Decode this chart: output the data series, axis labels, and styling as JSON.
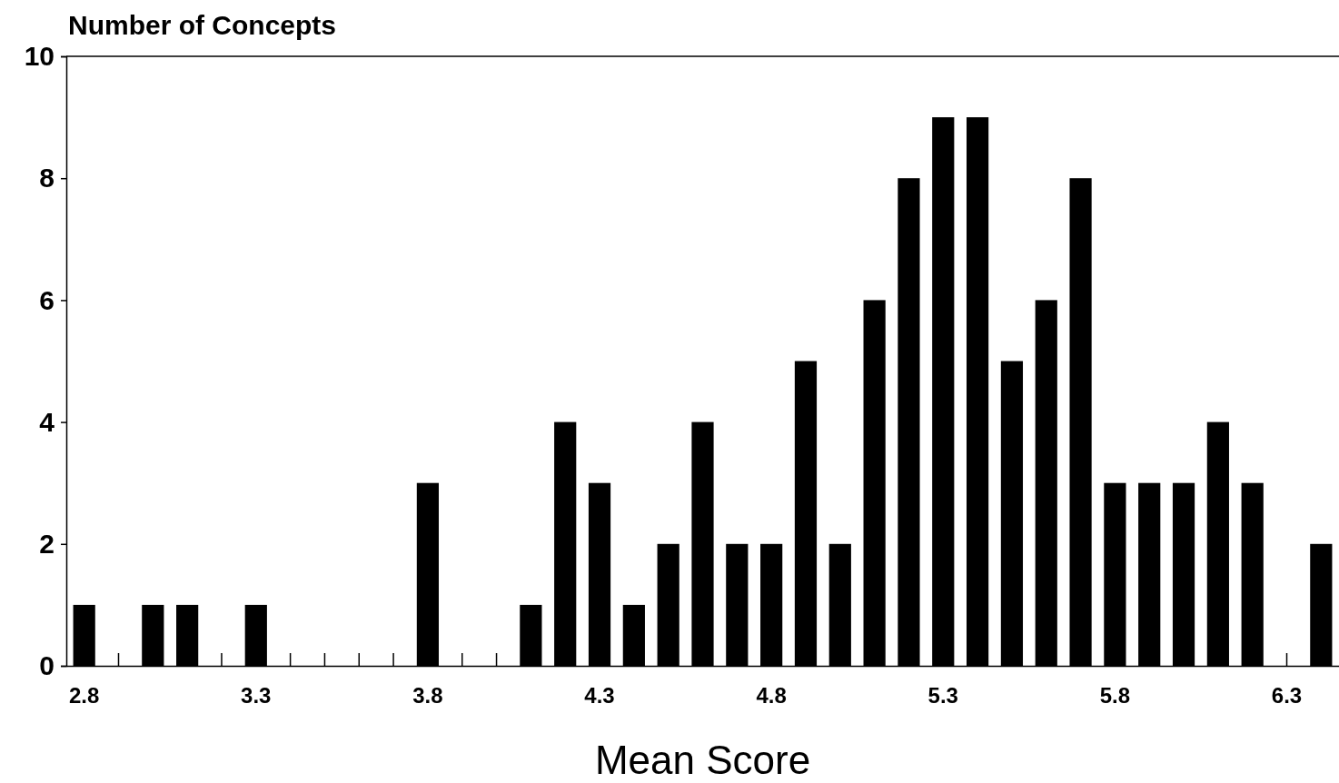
{
  "chart_data": {
    "type": "bar",
    "ylabel": "Number of Concepts",
    "xlabel": "Mean Score",
    "categories": [
      "2.8",
      null,
      null,
      null,
      null,
      "3.3",
      null,
      null,
      null,
      null,
      "3.8",
      null,
      null,
      null,
      null,
      "4.3",
      null,
      null,
      null,
      null,
      "4.8",
      null,
      null,
      null,
      null,
      "5.3",
      null,
      null,
      null,
      null,
      "5.8",
      null,
      null,
      null,
      null,
      "6.3",
      null
    ],
    "values": [
      1,
      0,
      1,
      1,
      0,
      1,
      0,
      0,
      0,
      0,
      3,
      0,
      0,
      1,
      4,
      3,
      1,
      2,
      4,
      2,
      2,
      5,
      2,
      6,
      8,
      9,
      9,
      5,
      6,
      8,
      3,
      3,
      3,
      4,
      3,
      0,
      2
    ],
    "color": "#000000",
    "ylim": [
      0,
      10
    ],
    "yticks": [
      0,
      2,
      4,
      6,
      8,
      10
    ],
    "grid": false
  }
}
